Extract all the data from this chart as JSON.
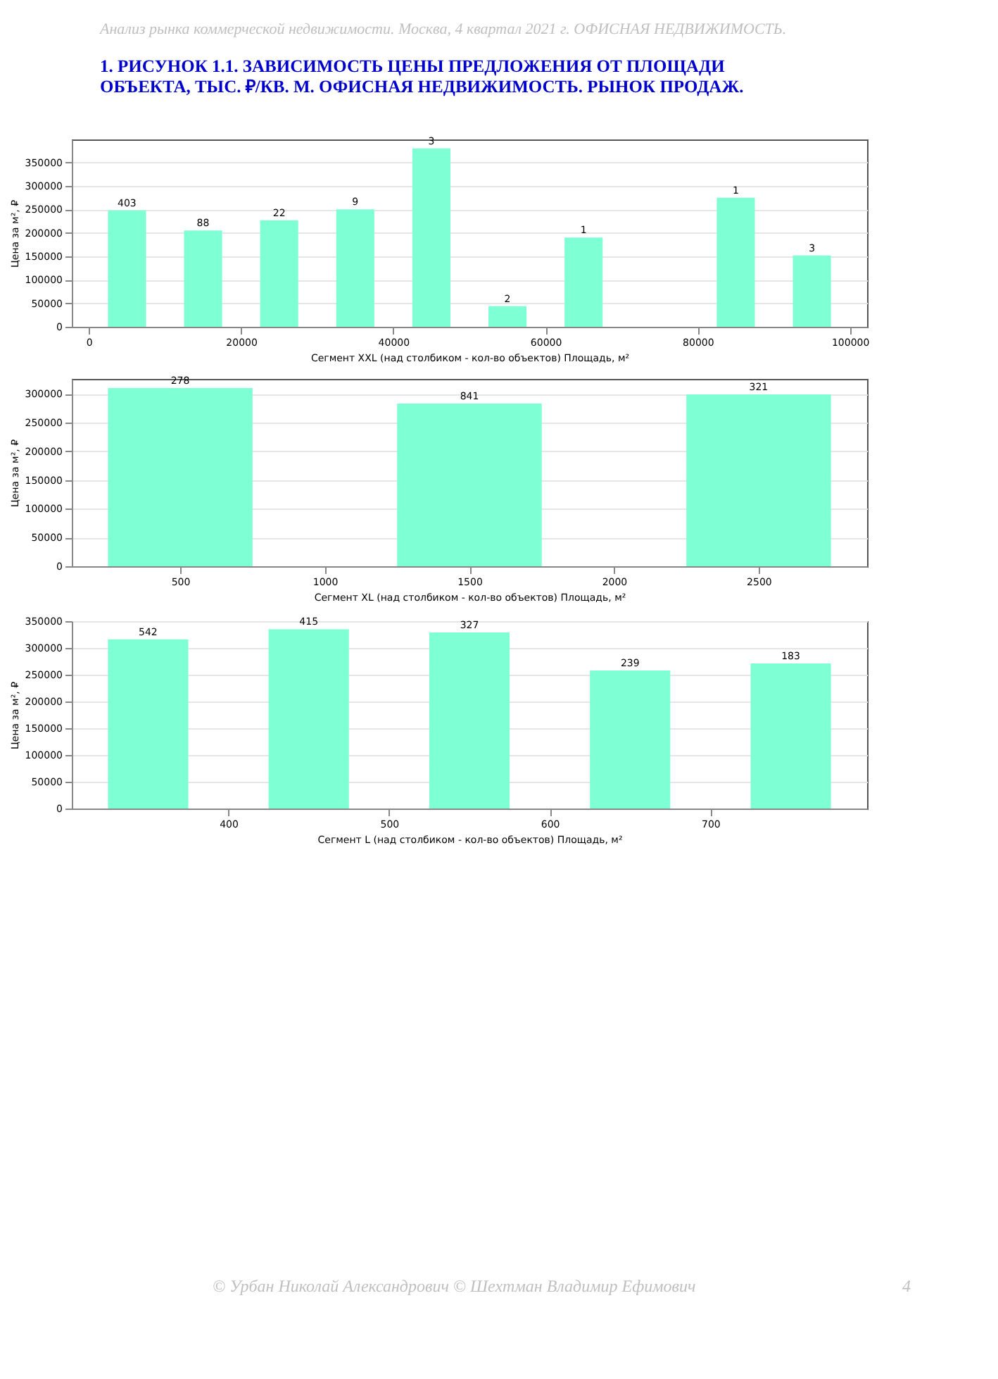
{
  "chart_data": [
    {
      "type": "bar",
      "title": "1.   РИСУНОК 1.1. ЗАВИСИМОСТЬ ЦЕНЫ ПРЕДЛОЖЕНИЯ ОТ ПЛОЩАДИ ОБЪЕКТА, ТЫС. ₽/КВ. М. ОФИСНАЯ НЕДВИЖИМОСТЬ. РЫНОК ПРОДАЖ.",
      "xlabel": "Сегмент XXL (над столбиком - кол-во объектов)   Площадь, м²",
      "ylabel": "Цена за м², ₽",
      "x": [
        5000,
        15000,
        25000,
        35000,
        45000,
        55000,
        65000,
        85000,
        95000
      ],
      "values": [
        248000,
        205000,
        227000,
        250000,
        380000,
        44000,
        190000,
        275000,
        152000
      ],
      "annotations": [
        "Анализ рынка коммерческой недвижимости.   Москва,  4 квартал 2021 г.   ОФИСНАЯ НЕДВИЖИМОСТЬ.",
        {
          "text": "403",
          "x": 5000,
          "y": 248000
        },
        {
          "text": "88",
          "x": 15000,
          "y": 205000
        },
        {
          "text": "22",
          "x": 25000,
          "y": 227000
        },
        {
          "text": "9",
          "x": 35000,
          "y": 250000
        },
        {
          "text": "3",
          "x": 45000,
          "y": 380000
        },
        {
          "text": "2",
          "x": 55000,
          "y": 44000
        },
        {
          "text": "1",
          "x": 65000,
          "y": 190000
        },
        {
          "text": "1",
          "x": 85000,
          "y": 275000
        },
        {
          "text": "3",
          "x": 95000,
          "y": 152000
        }
      ],
      "color": "#7fffd4",
      "xlim": [
        -2250,
        102250
      ],
      "xticks": [
        0,
        20000,
        40000,
        60000,
        80000,
        100000
      ],
      "ylim": [
        0,
        399000
      ],
      "yticks": [
        0,
        50000,
        100000,
        150000,
        200000,
        250000,
        300000,
        350000
      ],
      "grid": "y"
    },
    {
      "type": "bar",
      "xlabel": "Сегмент XL (над столбиком - кол-во объектов)   Площадь, м²",
      "ylabel": "Цена за м², ₽",
      "x": [
        500,
        1500,
        2500
      ],
      "values": [
        310000,
        283000,
        299000
      ],
      "annotations": [
        {
          "text": "278",
          "x": 500,
          "y": 310000
        },
        {
          "text": "841",
          "x": 1500,
          "y": 283000
        },
        {
          "text": "321",
          "x": 2500,
          "y": 299000
        }
      ],
      "color": "#7fffd4",
      "xlim": [
        125,
        2875
      ],
      "xticks": [
        500,
        1000,
        1500,
        2000,
        2500
      ],
      "ylim": [
        0,
        326000
      ],
      "yticks": [
        0,
        50000,
        100000,
        150000,
        200000,
        250000,
        300000
      ],
      "grid": "y"
    },
    {
      "type": "bar",
      "xlabel": "Сегмент L (над столбиком - кол-во объектов)   Площадь, м²",
      "ylabel": "Цена за м², ₽",
      "x": [
        350,
        450,
        550,
        650,
        750
      ],
      "values": [
        316000,
        335000,
        329000,
        258000,
        271000
      ],
      "annotations": [
        {
          "text": "542",
          "x": 350,
          "y": 316000
        },
        {
          "text": "415",
          "x": 450,
          "y": 335000
        },
        {
          "text": "327",
          "x": 550,
          "y": 329000
        },
        {
          "text": "239",
          "x": 650,
          "y": 258000
        },
        {
          "text": "183",
          "x": 750,
          "y": 271000
        },
        "© Урбан Николай Александрович   © Шехтман Владимир Ефимович",
        "4"
      ],
      "color": "#7fffd4",
      "xlim": [
        302.5,
        797.5
      ],
      "xticks": [
        400,
        500,
        600,
        700
      ],
      "ylim": [
        0,
        350000
      ],
      "yticks": [
        0,
        50000,
        100000,
        150000,
        200000,
        250000,
        300000,
        350000
      ],
      "grid": "y"
    }
  ]
}
